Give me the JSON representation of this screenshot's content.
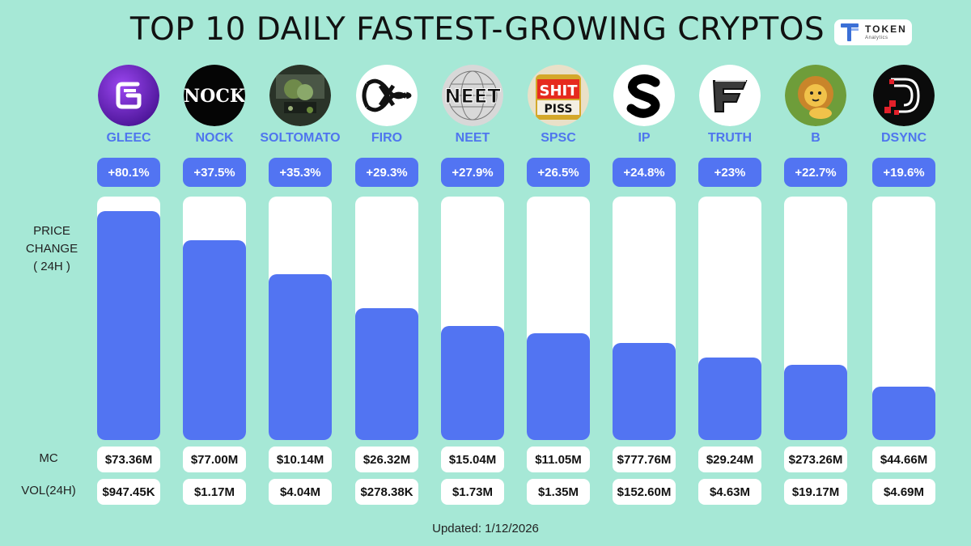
{
  "title": "TOP 10 DAILY FASTEST-GROWING CRYPTOS",
  "logo": {
    "name": "TOKEN",
    "sub": "Analytics"
  },
  "labels": {
    "price_change": [
      "PRICE",
      "CHANGE",
      "( 24H )"
    ],
    "mc": "MC",
    "vol": "VOL(24H)"
  },
  "updated": "Updated: 1/12/2026",
  "chart_data": {
    "type": "bar",
    "title": "TOP 10 DAILY FASTEST-GROWING CRYPTOS",
    "ylabel": "PRICE CHANGE ( 24H )",
    "categories": [
      "GLEEC",
      "NOCK",
      "SOLTOMATO",
      "FIRO",
      "NEET",
      "SPSC",
      "IP",
      "TRUTH",
      "B",
      "DSYNC"
    ],
    "values": [
      80.1,
      37.5,
      35.3,
      29.3,
      27.9,
      26.5,
      24.8,
      23,
      22.7,
      19.6
    ],
    "value_labels": [
      "+80.1%",
      "+37.5%",
      "+35.3%",
      "+29.3%",
      "+27.9%",
      "+26.5%",
      "+24.8%",
      "+23%",
      "+22.7%",
      "+19.6%"
    ],
    "bar_fill_fraction": [
      0.94,
      0.82,
      0.68,
      0.54,
      0.47,
      0.44,
      0.4,
      0.34,
      0.31,
      0.22
    ],
    "mc": [
      "$73.36M",
      "$77.00M",
      "$10.14M",
      "$26.32M",
      "$15.04M",
      "$11.05M",
      "$777.76M",
      "$29.24M",
      "$273.26M",
      "$44.66M"
    ],
    "vol": [
      "$947.45K",
      "$1.17M",
      "$4.04M",
      "$278.38K",
      "$1.73M",
      "$1.35M",
      "$152.60M",
      "$4.63M",
      "$19.17M",
      "$4.69M"
    ],
    "icons": [
      "gleec-logo-icon",
      "nock-logo-icon",
      "soltomato-logo-icon",
      "firo-logo-icon",
      "neet-logo-icon",
      "spsc-logo-icon",
      "ip-logo-icon",
      "truth-logo-icon",
      "b-logo-icon",
      "dsync-logo-icon"
    ],
    "icon_text": {
      "NOCK": "NOCK",
      "NEET": "NEET",
      "SPSC": [
        "SHIT",
        "PISS"
      ]
    },
    "grid": false,
    "legend": "none",
    "colors": {
      "bar": "#5274f2",
      "track": "#ffffff",
      "symbol": "#4f75ee",
      "background": "#a6e8d6"
    }
  }
}
